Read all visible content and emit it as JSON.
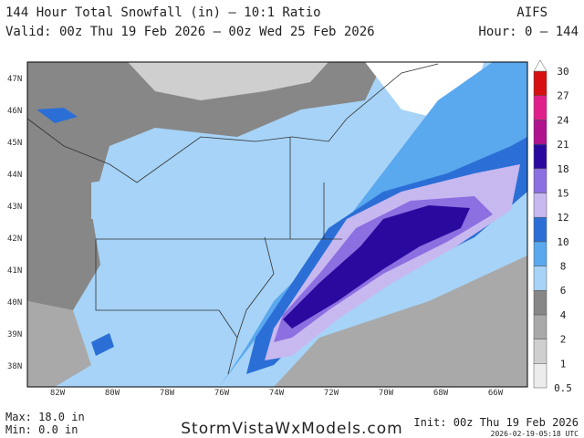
{
  "header": {
    "title": "144 Hour Total Snowfall (in) — 10:1 Ratio",
    "model": "AIFS",
    "valid": "Valid: 00z Thu 19 Feb 2026 — 00z Wed 25 Feb 2026",
    "hours": "Hour: 0 — 144"
  },
  "map": {
    "lat_labels": [
      "47N",
      "46N",
      "45N",
      "44N",
      "43N",
      "42N",
      "41N",
      "40N",
      "39N",
      "38N"
    ],
    "lon_labels": [
      "82W",
      "80W",
      "78W",
      "76W",
      "74W",
      "72W",
      "70W",
      "68W",
      "66W"
    ]
  },
  "colorbar": {
    "levels": [
      0.5,
      1,
      2,
      4,
      6,
      8,
      10,
      12,
      15,
      18,
      21,
      24,
      27,
      30
    ],
    "colors": [
      "#ececec",
      "#cfcfcf",
      "#a9a9a9",
      "#878787",
      "#a6d3f7",
      "#5aa8ee",
      "#2b6fd6",
      "#c8b8f0",
      "#8c6fe0",
      "#2a0a9e",
      "#b0128e",
      "#e0208a",
      "#d61010"
    ]
  },
  "footer": {
    "max": "Max: 18.0 in",
    "min": "Min: 0.0 in",
    "site": "StormVistaWxModels.com",
    "init": "Init: 00z Thu 19 Feb 2026",
    "stamp": "2026-02-19-05:18 UTC"
  }
}
